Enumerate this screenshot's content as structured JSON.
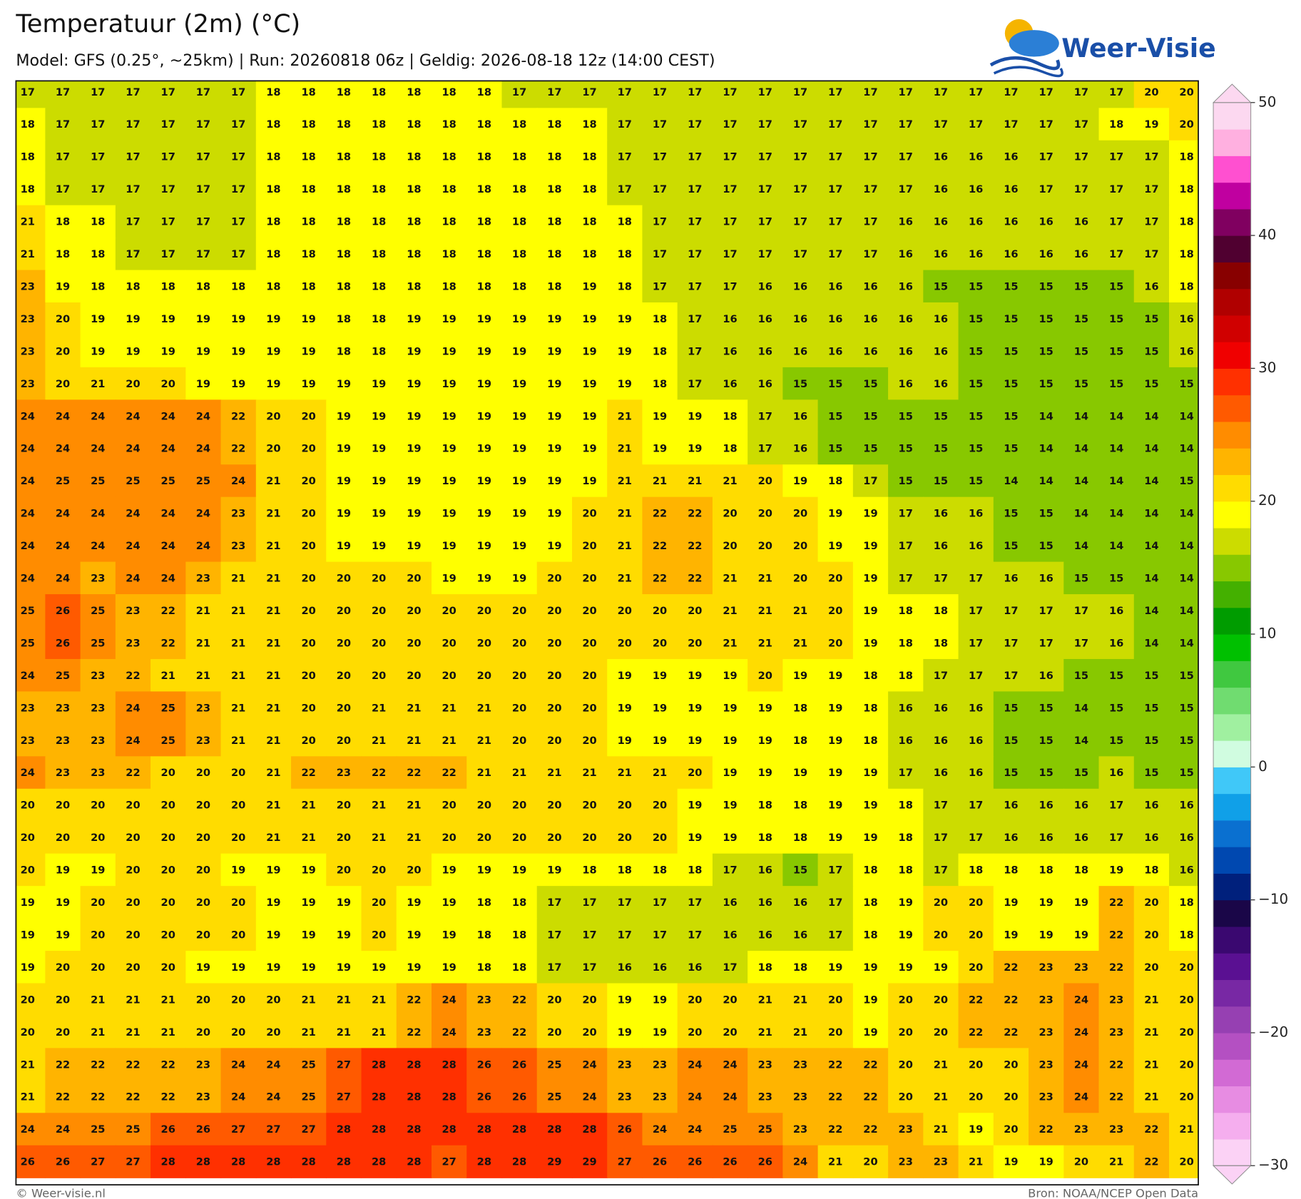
{
  "header": {
    "title": "Temperatuur (2m) (°C)",
    "subtitle": "Model: GFS (0.25°, ~25km)  |  Run: 20260818 06z  |  Geldig: 2026-08-18 12z (14:00 CEST)",
    "logo": "Weer-Visie"
  },
  "map": {
    "grid": [
      [
        17,
        17,
        17,
        17,
        17,
        17,
        17,
        18,
        18,
        18,
        18,
        18,
        18,
        18,
        17,
        17,
        17,
        17,
        17,
        17,
        17,
        17,
        17,
        17,
        17,
        17,
        17,
        17,
        17,
        17,
        17,
        17,
        20,
        20
      ],
      [
        18,
        17,
        17,
        17,
        17,
        17,
        17,
        18,
        18,
        18,
        18,
        18,
        18,
        18,
        18,
        18,
        18,
        17,
        17,
        17,
        17,
        17,
        17,
        17,
        17,
        17,
        17,
        17,
        17,
        17,
        17,
        18,
        19,
        20
      ],
      [
        18,
        17,
        17,
        17,
        17,
        17,
        17,
        18,
        18,
        18,
        18,
        18,
        18,
        18,
        18,
        18,
        18,
        17,
        17,
        17,
        17,
        17,
        17,
        17,
        17,
        17,
        16,
        16,
        16,
        17,
        17,
        17,
        17,
        18
      ],
      [
        18,
        17,
        17,
        17,
        17,
        17,
        17,
        18,
        18,
        18,
        18,
        18,
        18,
        18,
        18,
        18,
        18,
        17,
        17,
        17,
        17,
        17,
        17,
        17,
        17,
        17,
        16,
        16,
        16,
        17,
        17,
        17,
        17,
        18
      ],
      [
        21,
        18,
        18,
        17,
        17,
        17,
        17,
        18,
        18,
        18,
        18,
        18,
        18,
        18,
        18,
        18,
        18,
        18,
        17,
        17,
        17,
        17,
        17,
        17,
        17,
        16,
        16,
        16,
        16,
        16,
        16,
        17,
        17,
        18
      ],
      [
        21,
        18,
        18,
        17,
        17,
        17,
        17,
        18,
        18,
        18,
        18,
        18,
        18,
        18,
        18,
        18,
        18,
        18,
        17,
        17,
        17,
        17,
        17,
        17,
        17,
        16,
        16,
        16,
        16,
        16,
        16,
        17,
        17,
        18
      ],
      [
        23,
        19,
        18,
        18,
        18,
        18,
        18,
        18,
        18,
        18,
        18,
        18,
        18,
        18,
        18,
        18,
        19,
        18,
        17,
        17,
        17,
        16,
        16,
        16,
        16,
        16,
        15,
        15,
        15,
        15,
        15,
        15,
        16,
        18
      ],
      [
        23,
        20,
        19,
        19,
        19,
        19,
        19,
        19,
        19,
        18,
        18,
        19,
        19,
        19,
        19,
        19,
        19,
        19,
        18,
        17,
        16,
        16,
        16,
        16,
        16,
        16,
        16,
        15,
        15,
        15,
        15,
        15,
        15,
        16
      ],
      [
        23,
        20,
        19,
        19,
        19,
        19,
        19,
        19,
        19,
        18,
        18,
        19,
        19,
        19,
        19,
        19,
        19,
        19,
        18,
        17,
        16,
        16,
        16,
        16,
        16,
        16,
        16,
        15,
        15,
        15,
        15,
        15,
        15,
        16
      ],
      [
        23,
        20,
        21,
        20,
        20,
        19,
        19,
        19,
        19,
        19,
        19,
        19,
        19,
        19,
        19,
        19,
        19,
        19,
        18,
        17,
        16,
        16,
        15,
        15,
        15,
        16,
        16,
        15,
        15,
        15,
        15,
        15,
        15,
        15
      ],
      [
        24,
        24,
        24,
        24,
        24,
        24,
        22,
        20,
        20,
        19,
        19,
        19,
        19,
        19,
        19,
        19,
        19,
        21,
        19,
        19,
        18,
        17,
        16,
        15,
        15,
        15,
        15,
        15,
        15,
        14,
        14,
        14,
        14,
        14
      ],
      [
        24,
        24,
        24,
        24,
        24,
        24,
        22,
        20,
        20,
        19,
        19,
        19,
        19,
        19,
        19,
        19,
        19,
        21,
        19,
        19,
        18,
        17,
        16,
        15,
        15,
        15,
        15,
        15,
        15,
        14,
        14,
        14,
        14,
        14
      ],
      [
        24,
        25,
        25,
        25,
        25,
        25,
        24,
        21,
        20,
        19,
        19,
        19,
        19,
        19,
        19,
        19,
        19,
        21,
        21,
        21,
        21,
        20,
        19,
        18,
        17,
        15,
        15,
        15,
        14,
        14,
        14,
        14,
        14,
        15
      ],
      [
        24,
        24,
        24,
        24,
        24,
        24,
        23,
        21,
        20,
        19,
        19,
        19,
        19,
        19,
        19,
        19,
        20,
        21,
        22,
        22,
        20,
        20,
        20,
        19,
        19,
        17,
        16,
        16,
        15,
        15,
        14,
        14,
        14,
        14
      ],
      [
        24,
        24,
        24,
        24,
        24,
        24,
        23,
        21,
        20,
        19,
        19,
        19,
        19,
        19,
        19,
        19,
        20,
        21,
        22,
        22,
        20,
        20,
        20,
        19,
        19,
        17,
        16,
        16,
        15,
        15,
        14,
        14,
        14,
        14
      ],
      [
        24,
        24,
        23,
        24,
        24,
        23,
        21,
        21,
        20,
        20,
        20,
        20,
        19,
        19,
        19,
        20,
        20,
        21,
        22,
        22,
        21,
        21,
        20,
        20,
        19,
        17,
        17,
        17,
        16,
        16,
        15,
        15,
        14,
        14
      ],
      [
        25,
        26,
        25,
        23,
        22,
        21,
        21,
        21,
        20,
        20,
        20,
        20,
        20,
        20,
        20,
        20,
        20,
        20,
        20,
        20,
        21,
        21,
        21,
        20,
        19,
        18,
        18,
        17,
        17,
        17,
        17,
        16,
        14,
        14
      ],
      [
        25,
        26,
        25,
        23,
        22,
        21,
        21,
        21,
        20,
        20,
        20,
        20,
        20,
        20,
        20,
        20,
        20,
        20,
        20,
        20,
        21,
        21,
        21,
        20,
        19,
        18,
        18,
        17,
        17,
        17,
        17,
        16,
        14,
        14
      ],
      [
        24,
        25,
        23,
        22,
        21,
        21,
        21,
        21,
        20,
        20,
        20,
        20,
        20,
        20,
        20,
        20,
        20,
        19,
        19,
        19,
        19,
        20,
        19,
        19,
        18,
        18,
        17,
        17,
        17,
        16,
        15,
        15,
        15,
        15
      ],
      [
        23,
        23,
        23,
        24,
        25,
        23,
        21,
        21,
        20,
        20,
        21,
        21,
        21,
        21,
        20,
        20,
        20,
        19,
        19,
        19,
        19,
        19,
        18,
        19,
        18,
        16,
        16,
        16,
        15,
        15,
        14,
        15,
        15,
        15
      ],
      [
        23,
        23,
        23,
        24,
        25,
        23,
        21,
        21,
        20,
        20,
        21,
        21,
        21,
        21,
        20,
        20,
        20,
        19,
        19,
        19,
        19,
        19,
        18,
        19,
        18,
        16,
        16,
        16,
        15,
        15,
        14,
        15,
        15,
        15
      ],
      [
        24,
        23,
        23,
        22,
        20,
        20,
        20,
        21,
        22,
        23,
        22,
        22,
        22,
        21,
        21,
        21,
        21,
        21,
        21,
        20,
        19,
        19,
        19,
        19,
        19,
        17,
        16,
        16,
        15,
        15,
        15,
        16,
        15,
        15
      ],
      [
        20,
        20,
        20,
        20,
        20,
        20,
        20,
        21,
        21,
        20,
        21,
        21,
        20,
        20,
        20,
        20,
        20,
        20,
        20,
        19,
        19,
        18,
        18,
        19,
        19,
        18,
        17,
        17,
        16,
        16,
        16,
        17,
        16,
        16
      ],
      [
        20,
        20,
        20,
        20,
        20,
        20,
        20,
        21,
        21,
        20,
        21,
        21,
        20,
        20,
        20,
        20,
        20,
        20,
        20,
        19,
        19,
        18,
        18,
        19,
        19,
        18,
        17,
        17,
        16,
        16,
        16,
        17,
        16,
        16
      ],
      [
        20,
        19,
        19,
        20,
        20,
        20,
        19,
        19,
        19,
        20,
        20,
        20,
        19,
        19,
        19,
        19,
        18,
        18,
        18,
        18,
        17,
        16,
        15,
        17,
        18,
        18,
        17,
        18,
        18,
        18,
        18,
        19,
        18,
        16
      ],
      [
        19,
        19,
        20,
        20,
        20,
        20,
        20,
        19,
        19,
        19,
        20,
        19,
        19,
        18,
        18,
        17,
        17,
        17,
        17,
        17,
        16,
        16,
        16,
        17,
        18,
        19,
        20,
        20,
        19,
        19,
        19,
        22,
        20,
        18
      ],
      [
        19,
        19,
        20,
        20,
        20,
        20,
        20,
        19,
        19,
        19,
        20,
        19,
        19,
        18,
        18,
        17,
        17,
        17,
        17,
        17,
        16,
        16,
        16,
        17,
        18,
        19,
        20,
        20,
        19,
        19,
        19,
        22,
        20,
        18
      ],
      [
        19,
        20,
        20,
        20,
        20,
        19,
        19,
        19,
        19,
        19,
        19,
        19,
        19,
        18,
        18,
        17,
        17,
        16,
        16,
        16,
        17,
        18,
        18,
        19,
        19,
        19,
        19,
        20,
        22,
        23,
        23,
        22,
        20,
        20
      ],
      [
        20,
        20,
        21,
        21,
        21,
        20,
        20,
        20,
        21,
        21,
        21,
        22,
        24,
        23,
        22,
        20,
        20,
        19,
        19,
        20,
        20,
        21,
        21,
        20,
        19,
        20,
        20,
        22,
        22,
        23,
        24,
        23,
        21,
        20
      ],
      [
        20,
        20,
        21,
        21,
        21,
        20,
        20,
        20,
        21,
        21,
        21,
        22,
        24,
        23,
        22,
        20,
        20,
        19,
        19,
        20,
        20,
        21,
        21,
        20,
        19,
        20,
        20,
        22,
        22,
        23,
        24,
        23,
        21,
        20
      ],
      [
        21,
        22,
        22,
        22,
        22,
        23,
        24,
        24,
        25,
        27,
        28,
        28,
        28,
        26,
        26,
        25,
        24,
        23,
        23,
        24,
        24,
        23,
        23,
        22,
        22,
        20,
        21,
        20,
        20,
        23,
        24,
        22,
        21,
        20
      ],
      [
        21,
        22,
        22,
        22,
        22,
        23,
        24,
        24,
        25,
        27,
        28,
        28,
        28,
        26,
        26,
        25,
        24,
        23,
        23,
        24,
        24,
        23,
        23,
        22,
        22,
        20,
        21,
        20,
        20,
        23,
        24,
        22,
        21,
        20
      ],
      [
        24,
        24,
        25,
        25,
        26,
        26,
        27,
        27,
        27,
        28,
        28,
        28,
        28,
        28,
        28,
        28,
        28,
        26,
        24,
        24,
        25,
        25,
        23,
        22,
        22,
        23,
        21,
        19,
        20,
        22,
        23,
        23,
        22,
        21
      ],
      [
        26,
        26,
        27,
        27,
        28,
        28,
        28,
        28,
        28,
        28,
        28,
        28,
        27,
        28,
        28,
        29,
        29,
        27,
        26,
        26,
        26,
        26,
        24,
        21,
        20,
        23,
        23,
        21,
        19,
        19,
        20,
        21,
        22,
        20
      ]
    ],
    "colorbar": {
      "lim": [
        -30,
        50
      ],
      "ticks": [
        50,
        40,
        30,
        20,
        10,
        0,
        {
          "value": -10,
          "label": "−10"
        },
        {
          "value": -20,
          "label": "−20"
        },
        {
          "value": -30,
          "label": "−30"
        }
      ],
      "colors": [
        "#fbd2f5",
        "#f5aeee",
        "#e78ce2",
        "#d26ad4",
        "#b450c2",
        "#9640b2",
        "#7828a4",
        "#5a1092",
        "#3a0870",
        "#1a0648",
        "#00207c",
        "#0048b0",
        "#0a70d0",
        "#10a0e8",
        "#40c8f8",
        "#d0fce0",
        "#a0f0a0",
        "#70dc70",
        "#40c840",
        "#00c000",
        "#009c00",
        "#44b000",
        "#88c800",
        "#ccdc00",
        "#ffff00",
        "#ffdc00",
        "#ffb400",
        "#ff8c00",
        "#ff5a00",
        "#ff3000",
        "#f00000",
        "#d00000",
        "#b00000",
        "#880000",
        "#500030",
        "#800060",
        "#c000a0",
        "#ff50d0",
        "#ffb0e0",
        "#fcd8f0"
      ]
    }
  },
  "footer": {
    "credit": "© Weer-visie.nl",
    "source": "Bron: NOAA/NCEP Open Data"
  }
}
